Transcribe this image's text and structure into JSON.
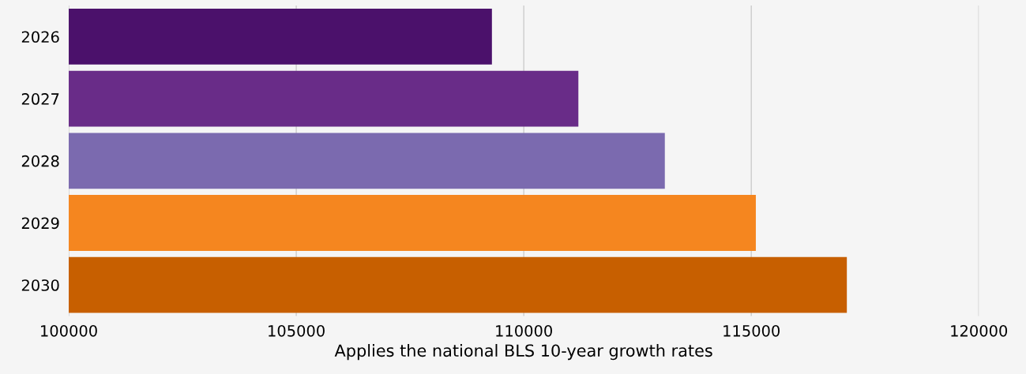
{
  "chart_data": {
    "type": "bar",
    "orientation": "horizontal",
    "xlabel": "Applies the national BLS 10-year growth rates",
    "categories": [
      "2026",
      "2027",
      "2028",
      "2029",
      "2030"
    ],
    "values": [
      109300,
      111200,
      113100,
      115100,
      117100
    ],
    "colors": [
      "#4b116b",
      "#692c88",
      "#7b6aaf",
      "#f5861f",
      "#c75f00"
    ],
    "xlim": [
      100000,
      120000
    ],
    "xticks": [
      100000,
      105000,
      110000,
      115000,
      120000
    ],
    "grid": "x",
    "legend": false
  }
}
